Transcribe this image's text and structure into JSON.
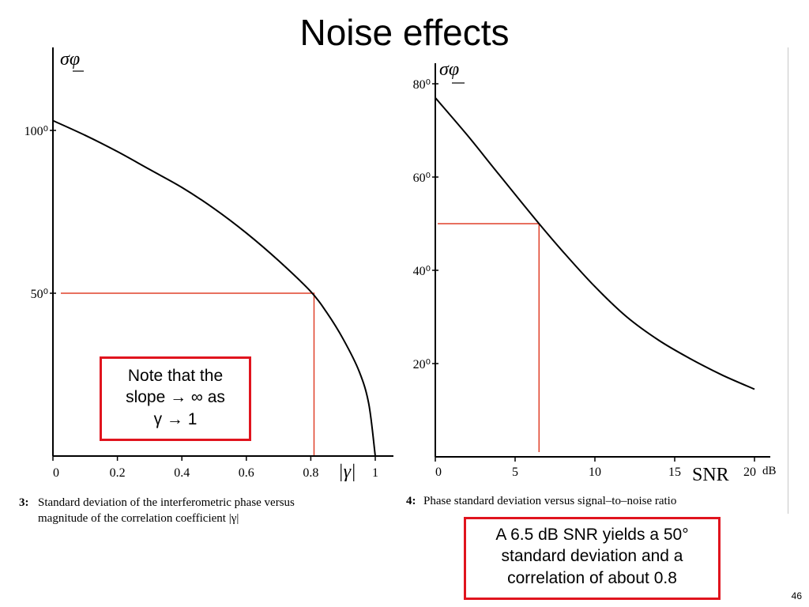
{
  "slide": {
    "title": "Noise effects",
    "page_number": "46",
    "note_left": [
      "Note that the",
      "slope → ∞ as",
      "γ → 1"
    ],
    "note_right": [
      "A 6.5 dB SNR yields a 50°",
      "standard deviation and a",
      "correlation of about 0.8"
    ]
  },
  "chart_data": [
    {
      "type": "line",
      "ylabel": "σφ",
      "xlabel": "|γ|",
      "xlim": [
        0,
        1
      ],
      "ylim": [
        0,
        125
      ],
      "x_ticks": [
        "0",
        "0.2",
        "0.4",
        "0.6",
        "0.8",
        "1"
      ],
      "y_ticks": [
        "100⁰",
        "50⁰"
      ],
      "series": [
        {
          "x": [
            0,
            0.1,
            0.2,
            0.3,
            0.4,
            0.5,
            0.6,
            0.7,
            0.8,
            0.85,
            0.9,
            0.95,
            0.98,
            1.0
          ],
          "y": [
            103,
            98.5,
            93.5,
            88,
            82.5,
            76,
            68.5,
            60,
            50.5,
            44,
            36,
            26,
            16,
            0
          ]
        }
      ],
      "annotation": {
        "x": 0.81,
        "y": 50
      },
      "caption_number": "3:",
      "caption": [
        "Standard deviation of the interferometric phase versus",
        "magnitude of the correlation coefficient |γ|"
      ]
    },
    {
      "type": "line",
      "ylabel": "σφ",
      "xlabel": "SNR",
      "x_unit": "dB",
      "xlim": [
        0,
        20
      ],
      "ylim": [
        0,
        85
      ],
      "x_ticks": [
        "0",
        "5",
        "10",
        "15",
        "20"
      ],
      "y_ticks": [
        "80⁰",
        "60⁰",
        "40⁰",
        "20⁰"
      ],
      "series": [
        {
          "x": [
            0,
            2,
            4,
            6.5,
            8,
            10,
            12,
            14,
            16,
            18,
            20
          ],
          "y": [
            77,
            69,
            60.5,
            50,
            44,
            36.5,
            30,
            25,
            21,
            17.5,
            14.5
          ]
        }
      ],
      "annotation": {
        "x": 6.5,
        "y": 50
      },
      "caption_number": "4:",
      "caption": [
        "Phase standard deviation versus signal–to–noise ratio"
      ]
    }
  ]
}
